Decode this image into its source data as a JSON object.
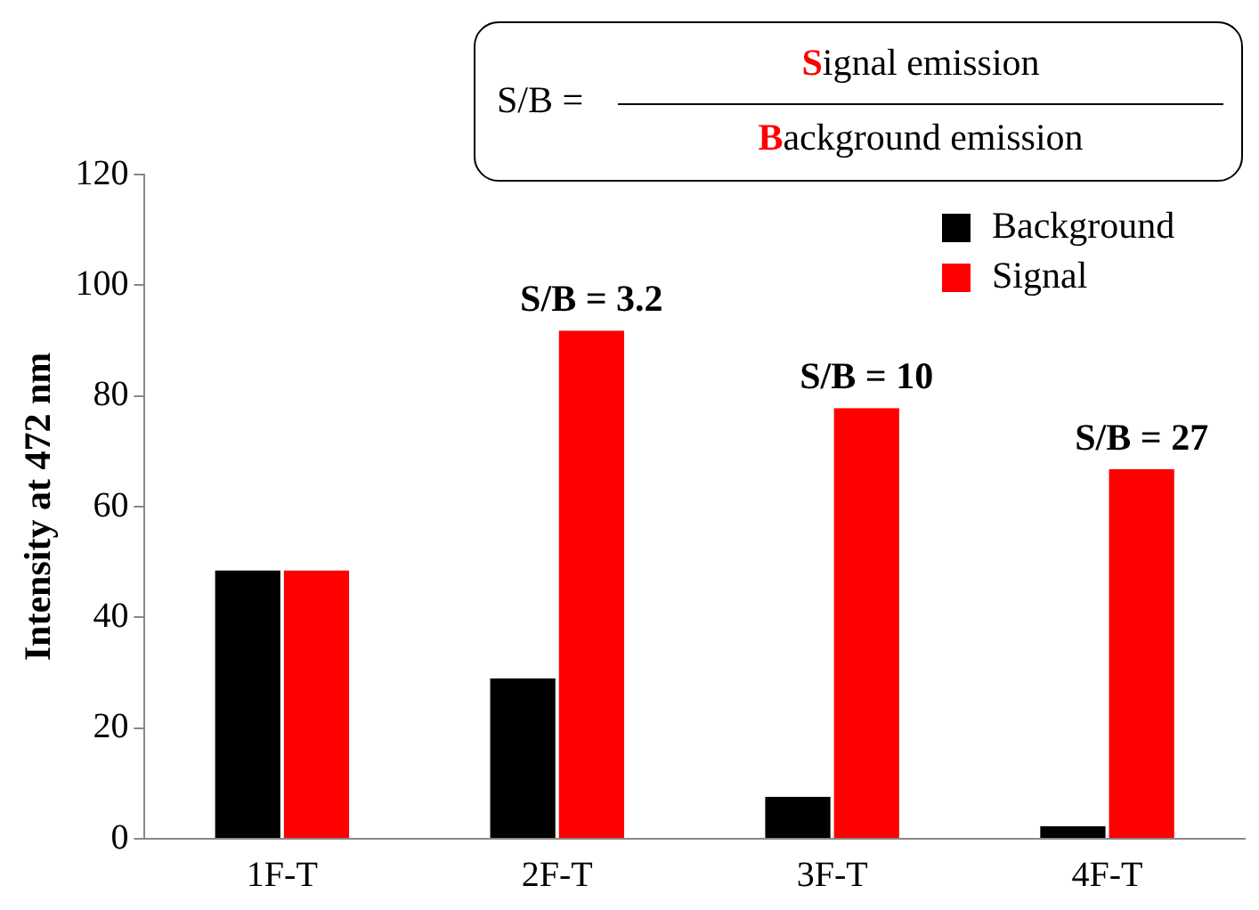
{
  "chart_data": {
    "type": "bar",
    "ylabel": "Intensity at 472 nm",
    "categories": [
      "1F-T",
      "2F-T",
      "3F-T",
      "4F-T"
    ],
    "series": [
      {
        "name": "Background",
        "color": "#000000",
        "values": [
          48.5,
          29,
          7.6,
          2.3
        ]
      },
      {
        "name": "Signal",
        "color": "#ff0000",
        "values": [
          48.5,
          91.8,
          77.8,
          66.8
        ]
      }
    ],
    "ylim": [
      0,
      120
    ],
    "yticks": [
      0,
      20,
      40,
      60,
      80,
      100,
      120
    ],
    "grid": false,
    "legend": "top right",
    "annotations": [
      "S/B =",
      "Signal emission",
      "Background emission",
      {
        "text": "S/B = 3.2",
        "x": "2F-T",
        "y": 91.8
      },
      {
        "text": "S/B = 10",
        "x": "3F-T",
        "y": 77.8
      },
      {
        "text": "S/B = 27",
        "x": "4F-T",
        "y": 66.8
      }
    ]
  }
}
